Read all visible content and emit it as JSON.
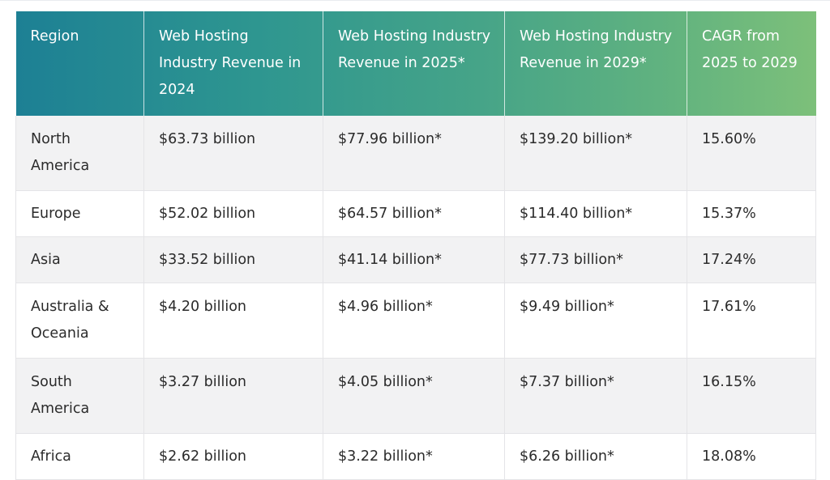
{
  "table": {
    "headers": [
      "Region",
      "Web Hosting Industry Revenue in 2024",
      "Web Hosting Industry Revenue in 2025*",
      "Web Hosting Industry Revenue in 2029*",
      "CAGR from 2025 to 2029"
    ],
    "rows": [
      [
        "North America",
        "$63.73 billion",
        "$77.96 billion*",
        "$139.20 billion*",
        "15.60%"
      ],
      [
        "Europe",
        "$52.02 billion",
        "$64.57 billion*",
        "$114.40 billion*",
        "15.37%"
      ],
      [
        "Asia",
        "$33.52 billion",
        "$41.14 billion*",
        "$77.73 billion*",
        "17.24%"
      ],
      [
        "Australia & Oceania",
        "$4.20 billion",
        "$4.96 billion*",
        "$9.49 billion*",
        "17.61%"
      ],
      [
        "South America",
        "$3.27 billion",
        "$4.05 billion*",
        "$7.37 billion*",
        "16.15%"
      ],
      [
        "Africa",
        "$2.62 billion",
        "$3.22 billion*",
        "$6.26 billion*",
        "18.08%"
      ]
    ]
  },
  "colors": {
    "header_gradient_start": "#1d8094",
    "header_gradient_end": "#7dc07a",
    "header_text": "#ffffff",
    "body_text": "#2b2b2b",
    "stripe": "#f2f2f3",
    "border": "#e4e4e7"
  }
}
